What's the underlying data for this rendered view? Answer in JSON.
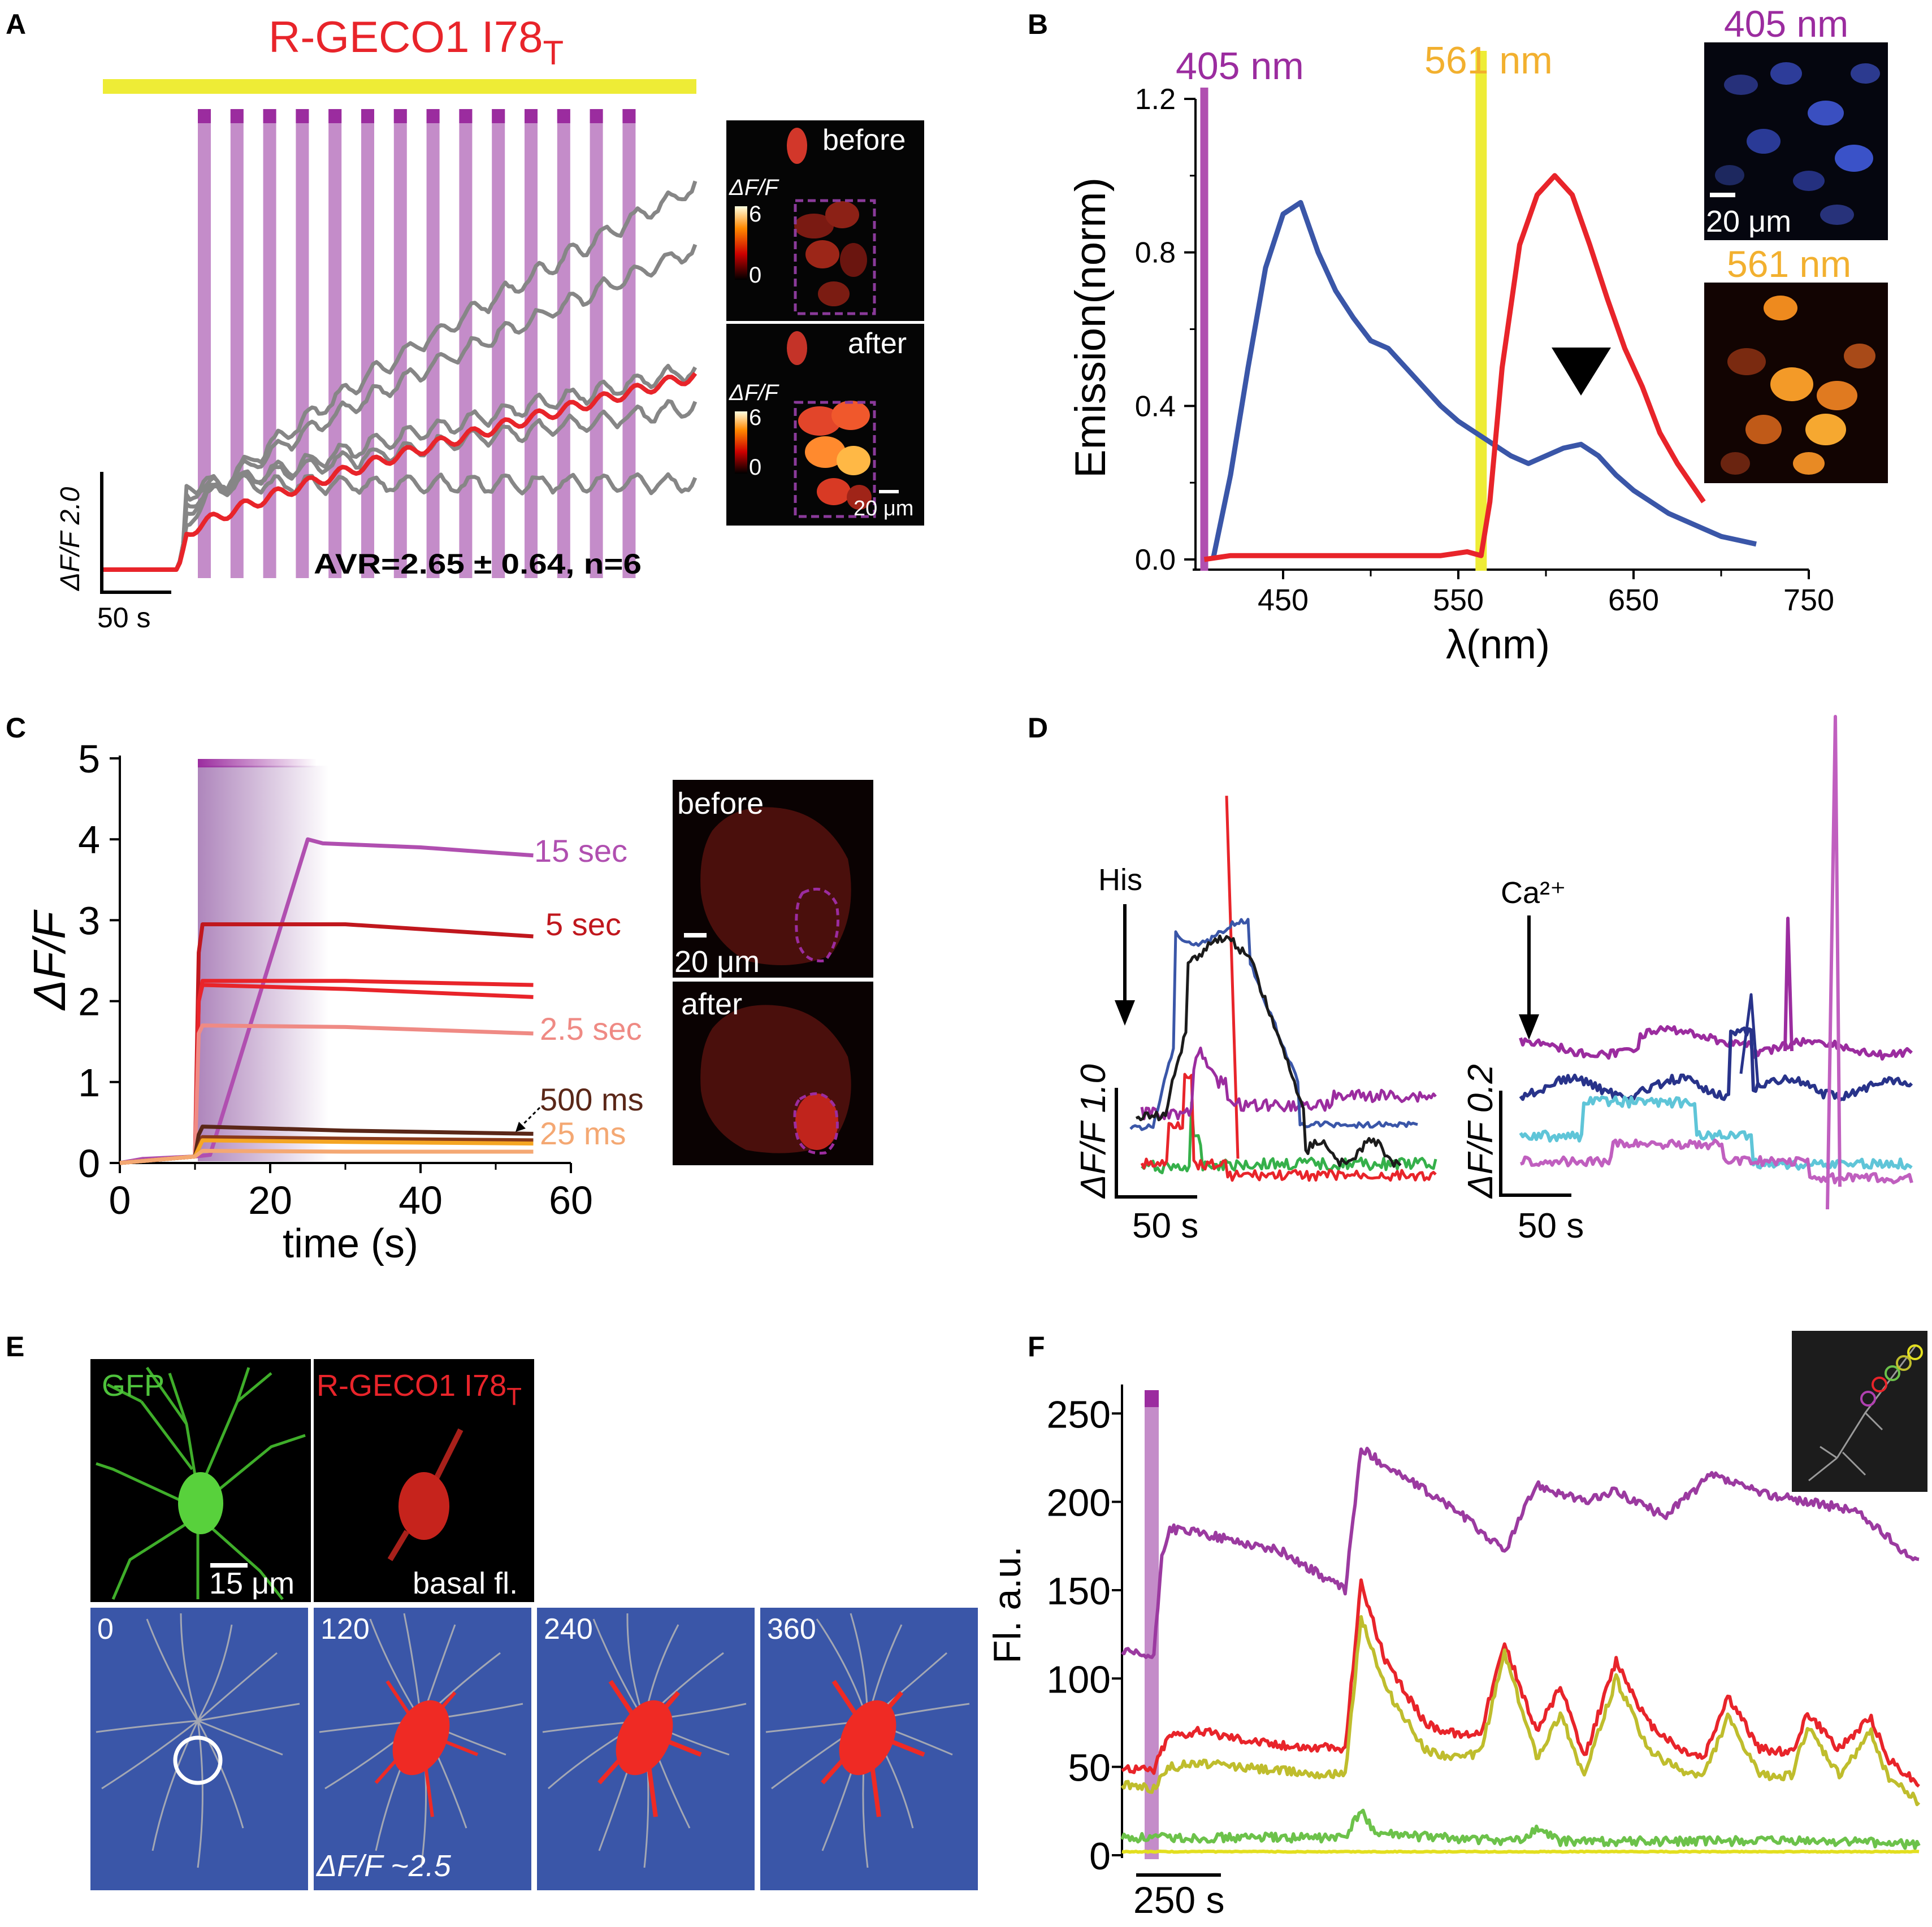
{
  "colors": {
    "red": "#e8242a",
    "gray": "#868686",
    "purple": "#9b2c9f",
    "lilac": "#c48cc9",
    "yellow": "#eeec36",
    "blue": "#3a56a8",
    "navy": "#28338a",
    "cyan": "#5fc5d8",
    "green": "#35b04a",
    "black": "#1b1b1b",
    "orange": "#f5a623",
    "darkred": "#c0171d",
    "salmon": "#ef8a84",
    "brown": "#5a2718",
    "peach": "#f4a873",
    "olive": "#bfbd2d",
    "limegreen": "#6cc24a",
    "micro_bg": "#3a56a8"
  },
  "panels": {
    "A": {
      "label": "A",
      "title": "R-GECO1 I78",
      "title_sub": "T",
      "scale_y": "ΔF/F 2.0",
      "scale_x": "50 s",
      "avr": "AVR=2.65 ± 0.64, n=6",
      "img_before": "before",
      "img_after": "after",
      "cbar_label": "ΔF/F",
      "cbar_max": "6",
      "cbar_min": "0",
      "cbar_max2": "6",
      "cbar_min2": "0",
      "scalebar": "20 μm"
    },
    "B": {
      "label": "B",
      "laser1": "405 nm",
      "laser2": "561 nm",
      "img1_label": "405 nm",
      "img2_label": "561 nm",
      "img_scalebar": "20 μm"
    },
    "C": {
      "label": "C",
      "img_before": "before",
      "img_after": "after",
      "img_scalebar": "20 μm"
    },
    "D": {
      "label": "D",
      "arrow1": "His",
      "arrow2": "Ca²⁺",
      "scale1_y": "ΔF/F 1.0",
      "scale1_x": "50 s",
      "scale2_y": "ΔF/F 0.2",
      "scale2_x": "50 s"
    },
    "E": {
      "label": "E",
      "gfp": "GFP",
      "rgeco": "R-GECO1 I78",
      "rgeco_sub": "T",
      "scalebar": "15 μm",
      "basal": "basal fl.",
      "frames": [
        "0",
        "120",
        "240",
        "360"
      ],
      "dff": "ΔF/F ~2.5"
    },
    "F": {
      "label": "F",
      "scale_x": "250 s"
    }
  },
  "chart_data": [
    {
      "id": "B",
      "type": "line",
      "xlabel": "λ(nm)",
      "ylabel": "Emission(norm)",
      "xlim": [
        400,
        750
      ],
      "ylim": [
        0,
        1.2
      ],
      "xticks": [
        "450",
        "550",
        "650",
        "750"
      ],
      "yticks": [
        "0.0",
        "0.4",
        "0.8",
        "1.2"
      ],
      "series": [
        {
          "name": "blue",
          "color": "#3a56a8",
          "x": [
            410,
            420,
            430,
            440,
            450,
            460,
            470,
            480,
            490,
            500,
            510,
            520,
            530,
            540,
            550,
            560,
            570,
            580,
            590,
            600,
            610,
            620,
            630,
            640,
            650,
            660,
            670,
            680,
            690,
            700,
            710,
            720
          ],
          "y": [
            0.0,
            0.22,
            0.5,
            0.76,
            0.9,
            0.93,
            0.8,
            0.7,
            0.63,
            0.57,
            0.55,
            0.5,
            0.45,
            0.4,
            0.36,
            0.33,
            0.3,
            0.27,
            0.25,
            0.27,
            0.29,
            0.3,
            0.27,
            0.22,
            0.18,
            0.15,
            0.12,
            0.1,
            0.08,
            0.06,
            0.05,
            0.04
          ]
        },
        {
          "name": "red",
          "color": "#e8242a",
          "x": [
            405,
            420,
            440,
            460,
            480,
            500,
            520,
            540,
            555,
            563,
            568,
            575,
            585,
            595,
            605,
            615,
            625,
            635,
            645,
            655,
            665,
            675,
            690
          ],
          "y": [
            0.0,
            0.01,
            0.01,
            0.01,
            0.01,
            0.01,
            0.01,
            0.01,
            0.02,
            0.01,
            0.15,
            0.5,
            0.82,
            0.95,
            1.0,
            0.95,
            0.82,
            0.68,
            0.55,
            0.45,
            0.33,
            0.25,
            0.15
          ]
        }
      ]
    },
    {
      "id": "C",
      "type": "line",
      "xlabel": "time (s)",
      "ylabel": "ΔF/F",
      "xlim": [
        0,
        60
      ],
      "ylim": [
        0,
        5
      ],
      "xticks": [
        "0",
        "20",
        "40",
        "60"
      ],
      "yticks": [
        "0",
        "1",
        "2",
        "3",
        "4",
        "5"
      ],
      "series": [
        {
          "name": "15 sec",
          "color": "#b04fb0",
          "x": [
            0,
            3,
            10,
            12,
            25,
            27,
            40,
            55
          ],
          "y": [
            0,
            0.05,
            0.08,
            0.1,
            4.0,
            3.95,
            3.9,
            3.8
          ]
        },
        {
          "name": "5 sec",
          "color": "#c0171d",
          "x": [
            0,
            10,
            10.5,
            11,
            30,
            55
          ],
          "y": [
            0,
            0.08,
            2.6,
            2.95,
            2.95,
            2.8
          ]
        },
        {
          "name": "",
          "color": "#e8242a",
          "x": [
            0,
            10,
            10.5,
            11,
            30,
            55
          ],
          "y": [
            0,
            0.08,
            2.0,
            2.25,
            2.25,
            2.2
          ]
        },
        {
          "name": "",
          "color": "#e8242a",
          "x": [
            0,
            10,
            10.5,
            11,
            30,
            55
          ],
          "y": [
            0,
            0.08,
            2.0,
            2.2,
            2.15,
            2.05
          ]
        },
        {
          "name": "2.5 sec",
          "color": "#ef8a84",
          "x": [
            0,
            10,
            10.5,
            11,
            30,
            55
          ],
          "y": [
            0,
            0.08,
            1.6,
            1.7,
            1.68,
            1.6
          ]
        },
        {
          "name": "500 ms",
          "color": "#5a2718",
          "x": [
            0,
            10,
            10.5,
            11,
            30,
            55
          ],
          "y": [
            0,
            0.08,
            0.35,
            0.45,
            0.4,
            0.36
          ]
        },
        {
          "name": "",
          "color": "#8b3a1a",
          "x": [
            0,
            10,
            11,
            30,
            55
          ],
          "y": [
            0,
            0.08,
            0.32,
            0.3,
            0.28
          ]
        },
        {
          "name": "",
          "color": "#f5a623",
          "x": [
            0,
            10,
            11,
            30,
            55
          ],
          "y": [
            0,
            0.08,
            0.28,
            0.26,
            0.24
          ]
        },
        {
          "name": "25 ms",
          "color": "#f4a873",
          "x": [
            0,
            10,
            11,
            30,
            55
          ],
          "y": [
            0,
            0.08,
            0.15,
            0.14,
            0.14
          ]
        }
      ]
    },
    {
      "id": "F",
      "type": "line",
      "ylabel": "Fl. a.u.",
      "ylim": [
        0,
        260
      ],
      "yticks": [
        "0",
        "50",
        "100",
        "150",
        "200",
        "250"
      ],
      "series": [
        {
          "name": "purple",
          "color": "#9b3aa0",
          "x": [
            0,
            4,
            5,
            6,
            10,
            20,
            28,
            30,
            35,
            42,
            48,
            52,
            58,
            62,
            68,
            74,
            80,
            86,
            92,
            100
          ],
          "y": [
            115,
            112,
            170,
            185,
            182,
            172,
            150,
            230,
            215,
            195,
            172,
            210,
            200,
            206,
            192,
            215,
            205,
            200,
            195,
            165
          ]
        },
        {
          "name": "red",
          "color": "#e8242a",
          "x": [
            0,
            4,
            5,
            6,
            10,
            20,
            28,
            30,
            33,
            38,
            42,
            45,
            48,
            52,
            55,
            58,
            62,
            66,
            70,
            73,
            76,
            80,
            84,
            86,
            90,
            94,
            96,
            100
          ],
          "y": [
            50,
            48,
            60,
            68,
            70,
            62,
            60,
            155,
            110,
            75,
            68,
            70,
            120,
            70,
            95,
            55,
            110,
            75,
            60,
            55,
            90,
            60,
            58,
            80,
            60,
            78,
            55,
            40
          ]
        },
        {
          "name": "olive",
          "color": "#bfbd2d",
          "x": [
            0,
            4,
            5,
            6,
            10,
            20,
            28,
            30,
            33,
            38,
            42,
            45,
            48,
            52,
            55,
            58,
            62,
            66,
            70,
            73,
            76,
            80,
            84,
            86,
            90,
            94,
            96,
            100
          ],
          "y": [
            40,
            38,
            45,
            50,
            52,
            48,
            45,
            135,
            95,
            60,
            55,
            58,
            115,
            55,
            80,
            45,
            100,
            60,
            48,
            45,
            78,
            45,
            45,
            72,
            45,
            70,
            45,
            30
          ]
        },
        {
          "name": "green",
          "color": "#6cc24a",
          "x": [
            0,
            28,
            30,
            32,
            40,
            50,
            52,
            55,
            70,
            80,
            90,
            100
          ],
          "y": [
            10,
            10,
            25,
            12,
            10,
            8,
            15,
            8,
            8,
            8,
            8,
            6
          ]
        },
        {
          "name": "yellow",
          "color": "#e3df1f",
          "x": [
            0,
            100
          ],
          "y": [
            2,
            2
          ]
        }
      ]
    },
    {
      "id": "A",
      "type": "line",
      "series_count": 6,
      "note": "grey = individual cells, red = average"
    },
    {
      "id": "D",
      "type": "line",
      "traces_left": 5,
      "traces_right": 4
    }
  ]
}
